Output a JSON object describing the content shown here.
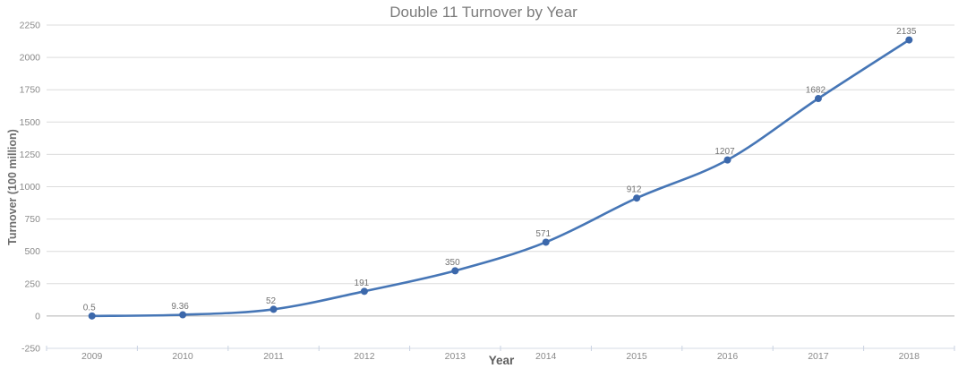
{
  "chart_data": {
    "type": "line",
    "title": "Double 11 Turnover by Year",
    "xlabel": "Year",
    "ylabel": "Turnover (100 million)",
    "categories": [
      "2009",
      "2010",
      "2011",
      "2012",
      "2013",
      "2014",
      "2015",
      "2016",
      "2017",
      "2018"
    ],
    "series": [
      {
        "name": "Turnover",
        "values": [
          0.5,
          9.36,
          52,
          191,
          350,
          571,
          912,
          1207,
          1682,
          2135
        ]
      }
    ],
    "point_labels": [
      "0.5",
      "9.36",
      "52",
      "191",
      "350",
      "571",
      "912",
      "1207",
      "1682",
      "2135"
    ],
    "ylim": [
      -250,
      2250
    ],
    "yticks": [
      -250,
      0,
      250,
      500,
      750,
      1000,
      1250,
      1500,
      1750,
      2000,
      2250
    ],
    "grid": "horizontal-only",
    "legend": "none",
    "line_smoothed": true,
    "colors": {
      "line": "#4676b6",
      "marker": "#3c68ab",
      "grid": "#dcdcdc",
      "zero_axis": "#b3b3b3",
      "bottom_axis": "#d6dbe4",
      "tick_mark": "#c9d2e2",
      "tick_label": "#8a8a8a",
      "data_label": "#737373",
      "title": "#7b7b7b",
      "axis_title": "#666666"
    }
  }
}
